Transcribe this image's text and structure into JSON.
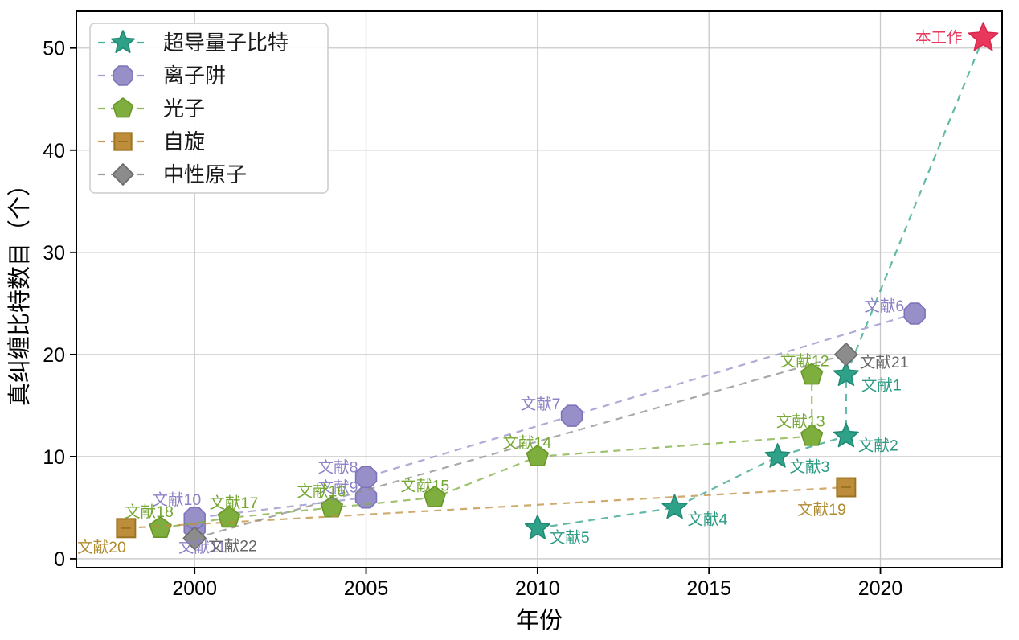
{
  "chart_data": {
    "type": "scatter",
    "title": "",
    "xlabel": "年份",
    "ylabel": "真纠缠比特数目（个）",
    "xlim": [
      1996.55,
      2023.55
    ],
    "ylim": [
      -0.87,
      53.6
    ],
    "xticks": [
      2000,
      2005,
      2010,
      2015,
      2020
    ],
    "yticks": [
      0,
      10,
      20,
      30,
      40,
      50
    ],
    "grid": true,
    "grid_color": "#c9c9c9",
    "border_color": "#000000",
    "legend_position": "upper-left",
    "series": [
      {
        "name": "超导量子比特",
        "marker": "star",
        "color": "#2fa189",
        "edge_color": "#1f8a74",
        "label_color": "#2c9b83",
        "line_style": "dashed",
        "points": [
          {
            "x": 2010,
            "y": 3,
            "label": "文献5",
            "label_dx": 15,
            "label_dy": 18,
            "label_anchor": "start"
          },
          {
            "x": 2014,
            "y": 5,
            "label": "文献4",
            "label_dx": 16,
            "label_dy": 21,
            "label_anchor": "start"
          },
          {
            "x": 2017,
            "y": 10,
            "label": "文献3",
            "label_dx": 15,
            "label_dy": 19,
            "label_anchor": "start"
          },
          {
            "x": 2019,
            "y": 12,
            "label": "文献2",
            "label_dx": 15,
            "label_dy": 18,
            "label_anchor": "start"
          },
          {
            "x": 2019,
            "y": 18,
            "label": "文献1",
            "label_dx": 19,
            "label_dy": 19,
            "label_anchor": "start"
          },
          {
            "x": 2023,
            "y": 51,
            "label": "本工作",
            "label_dx": -26,
            "label_dy": 6,
            "label_anchor": "end",
            "highlight": true,
            "marker_color": "#e8385c",
            "marker_edge": "#da2950",
            "label_color": "#e8385c",
            "marker_size": 19
          }
        ]
      },
      {
        "name": "离子阱",
        "marker": "octagon",
        "color": "#968fc8",
        "edge_color": "#7d73ba",
        "label_color": "#8d83c6",
        "line_style": "dashed",
        "points": [
          {
            "x": 2000,
            "y": 3,
            "label": "文献11",
            "label_dx": 39,
            "label_dy": 30,
            "label_anchor": "end"
          },
          {
            "x": 2000,
            "y": 4,
            "label": "文献10",
            "label_dx": 8,
            "label_dy": -16,
            "label_anchor": "end"
          },
          {
            "x": 2005,
            "y": 6,
            "label": "文献9",
            "label_dx": -10,
            "label_dy": -6,
            "label_anchor": "end"
          },
          {
            "x": 2005,
            "y": 8,
            "label": "文献8",
            "label_dx": -10,
            "label_dy": -6,
            "label_anchor": "end"
          },
          {
            "x": 2011,
            "y": 14,
            "label": "文献7",
            "label_dx": -14,
            "label_dy": -8,
            "label_anchor": "end"
          },
          {
            "x": 2021,
            "y": 24,
            "label": "文献6",
            "label_dx": -13,
            "label_dy": -3,
            "label_anchor": "end"
          }
        ]
      },
      {
        "name": "光子",
        "marker": "pentagon",
        "color": "#7eae3e",
        "edge_color": "#699527",
        "label_color": "#74a832",
        "line_style": "dashed",
        "points": [
          {
            "x": 1999,
            "y": 3,
            "label": "文献18",
            "label_dx": -14,
            "label_dy": -14,
            "label_anchor": "middle"
          },
          {
            "x": 2001,
            "y": 4,
            "label": "文献17",
            "label_dx": 6,
            "label_dy": -12,
            "label_anchor": "middle"
          },
          {
            "x": 2004,
            "y": 5,
            "label": "文献16",
            "label_dx": -13,
            "label_dy": -14,
            "label_anchor": "middle"
          },
          {
            "x": 2007,
            "y": 6,
            "label": "文献15",
            "label_dx": -12,
            "label_dy": -8,
            "label_anchor": "middle"
          },
          {
            "x": 2010,
            "y": 10,
            "label": "文献14",
            "label_dx": -13,
            "label_dy": -11,
            "label_anchor": "middle"
          },
          {
            "x": 2018,
            "y": 12,
            "label": "文献13",
            "label_dx": -14,
            "label_dy": -12,
            "label_anchor": "middle"
          },
          {
            "x": 2018,
            "y": 18,
            "label": "文献12",
            "label_dx": -9,
            "label_dy": -11,
            "label_anchor": "middle"
          }
        ]
      },
      {
        "name": "自旋",
        "marker": "square",
        "color": "#bd8d3c",
        "edge_color": "#9c731f",
        "label_color": "#b08a2e",
        "line_style": "dashed",
        "points": [
          {
            "x": 1998,
            "y": 3,
            "label": "文献20",
            "label_dx": 0,
            "label_dy": 30,
            "label_anchor": "end"
          },
          {
            "x": 2019,
            "y": 7,
            "label": "文献19",
            "label_dx": 0,
            "label_dy": 34,
            "label_anchor": "end"
          }
        ]
      },
      {
        "name": "中性原子",
        "marker": "diamond",
        "color": "#8c8c8c",
        "edge_color": "#6b6b6b",
        "label_color": "#666666",
        "line_style": "dashed",
        "points": [
          {
            "x": 2000,
            "y": 2,
            "label": "文献22",
            "label_dx": 17,
            "label_dy": 16,
            "label_anchor": "start"
          },
          {
            "x": 2019,
            "y": 20,
            "label": "文献21",
            "label_dx": 17,
            "label_dy": 16,
            "label_anchor": "start"
          }
        ]
      }
    ],
    "annotations": [
      {
        "text": "本工作",
        "x": 2023,
        "y": 51,
        "color": "#e8385c"
      }
    ]
  }
}
